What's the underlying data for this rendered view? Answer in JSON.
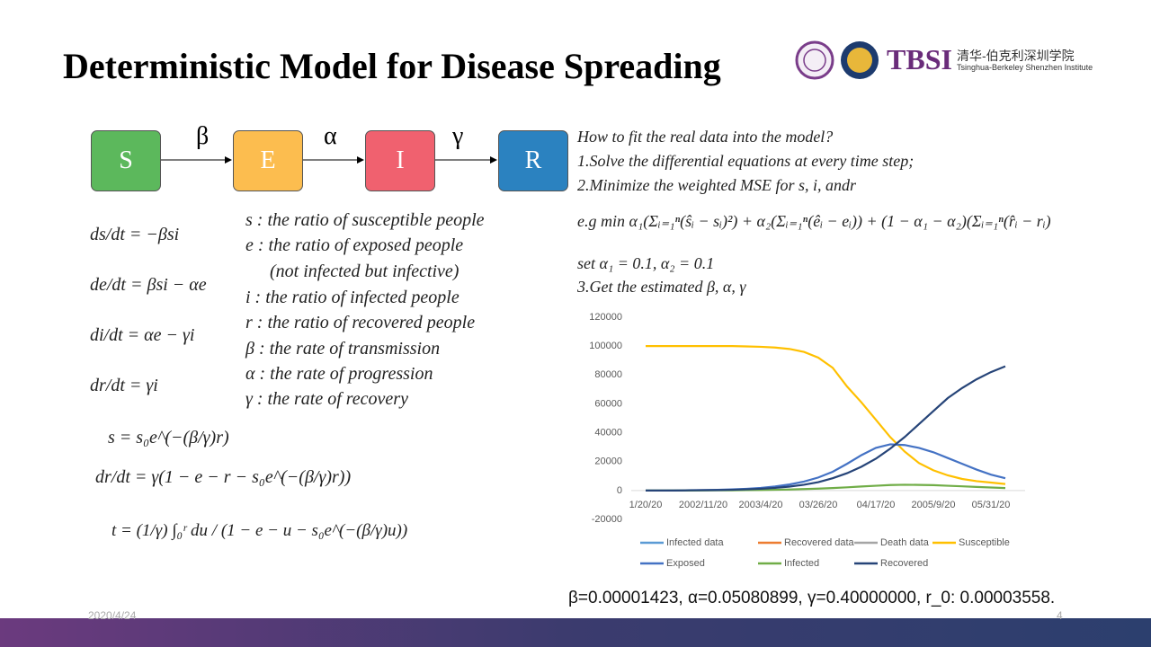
{
  "slide": {
    "title": "Deterministic Model for Disease Spreading",
    "logo": {
      "acronym": "TBSI",
      "chinese": "清华-伯克利深圳学院",
      "english": "Tsinghua-Berkeley Shenzhen Institute"
    },
    "flow": {
      "nodes": [
        "S",
        "E",
        "I",
        "R"
      ],
      "edges": [
        "β",
        "α",
        "γ"
      ]
    },
    "equations": [
      "ds/dt = −βsi",
      "de/dt = βsi − αe",
      "di/dt = αe − γi",
      "dr/dt = γi"
    ],
    "definitions": [
      "s : the ratio of susceptible people",
      "e : the ratio of exposed people",
      "(not infected but infective)",
      "i : the ratio of infected people",
      "r : the ratio of recovered people",
      "β : the rate of transmission",
      "α : the rate of progression",
      "γ : the rate of recovery"
    ],
    "solution": [
      "s = s₀e^(−(β/γ)r)",
      "dr/dt = γ(1 − e − r − s₀e^(−(β/γ)r))",
      "t = (1/γ) ∫₀ʳ du / (1 − e − u − s₀e^(−(β/γ)u))"
    ],
    "fitting": [
      "How to fit the real data into the model?",
      "1.Solve the differential equations at every time step;",
      "2.Minimize the weighted MSE for s, i, andr",
      "e.g min α₁(Σᵢ₌₁ⁿ(ŝᵢ − sᵢ)²) + α₂(Σᵢ₌₁ⁿ(êᵢ − eᵢ)) + (1 − α₁ − α₂)(Σᵢ₌₁ⁿ(r̂ᵢ − rᵢ)",
      "set α₁ = 0.1, α₂ = 0.1",
      "3.Get the estimated β, α, γ"
    ],
    "result": "β=0.00001423, α=0.05080899, γ=0.40000000, r_0: 0.00003558.",
    "date": "2020/4/24",
    "page": "4"
  },
  "chart_data": {
    "type": "line",
    "categories": [
      "1/20/20",
      null,
      null,
      null,
      "2002/11/20",
      null,
      null,
      null,
      "2003/4/20",
      null,
      null,
      null,
      "03/26/20",
      null,
      null,
      null,
      "04/17/20",
      null,
      null,
      null,
      "2005/9/20",
      null,
      null,
      null,
      "05/31/20",
      null
    ],
    "ylim": [
      -20000,
      120000
    ],
    "yticks": [
      -20000,
      0,
      20000,
      40000,
      60000,
      80000,
      100000,
      120000
    ],
    "grid": false,
    "legend": "bottom",
    "series": [
      {
        "name": "Infected data",
        "color": "#5b9bd5",
        "values": [
          null,
          null,
          null,
          null,
          null,
          null,
          null,
          null,
          null,
          null,
          null,
          null,
          null,
          null,
          null,
          null,
          null,
          null,
          null,
          null,
          null,
          null,
          null,
          null,
          null,
          null
        ]
      },
      {
        "name": "Recovered data",
        "color": "#ed7d31",
        "values": [
          null,
          null,
          null,
          null,
          null,
          null,
          null,
          null,
          null,
          null,
          null,
          null,
          null,
          null,
          null,
          null,
          null,
          null,
          null,
          null,
          null,
          null,
          null,
          null,
          null,
          null
        ]
      },
      {
        "name": "Death data",
        "color": "#a5a5a5",
        "values": [
          null,
          null,
          null,
          null,
          null,
          null,
          null,
          null,
          null,
          null,
          null,
          null,
          null,
          null,
          null,
          null,
          null,
          null,
          null,
          null,
          null,
          null,
          null,
          null,
          null,
          null
        ]
      },
      {
        "name": "Susceptible",
        "color": "#ffc000",
        "values": [
          100000,
          100000,
          100000,
          100000,
          100000,
          100000,
          100000,
          99800,
          99500,
          99000,
          98000,
          96000,
          92000,
          85000,
          72000,
          61000,
          49000,
          37000,
          27000,
          19000,
          14000,
          10500,
          8000,
          6500,
          5500,
          4500
        ]
      },
      {
        "name": "Exposed",
        "color": "#4472c4",
        "values": [
          0,
          0,
          100,
          200,
          300,
          500,
          800,
          1200,
          1800,
          2800,
          4200,
          6200,
          9000,
          13000,
          18500,
          24500,
          29500,
          32000,
          31500,
          29500,
          26500,
          22500,
          18500,
          14500,
          11000,
          8500
        ]
      },
      {
        "name": "Infected",
        "color": "#70ad47",
        "values": [
          0,
          0,
          0,
          0,
          50,
          100,
          150,
          250,
          350,
          500,
          700,
          1000,
          1300,
          1700,
          2200,
          2800,
          3300,
          3800,
          4000,
          3900,
          3700,
          3300,
          2900,
          2500,
          2100,
          1700
        ]
      },
      {
        "name": "Recovered",
        "color": "#264478",
        "values": [
          0,
          0,
          0,
          100,
          200,
          300,
          500,
          800,
          1200,
          1800,
          2700,
          4000,
          5800,
          8500,
          12000,
          16500,
          22000,
          29000,
          37000,
          46000,
          55000,
          64000,
          71000,
          77000,
          82000,
          86000
        ]
      }
    ]
  }
}
